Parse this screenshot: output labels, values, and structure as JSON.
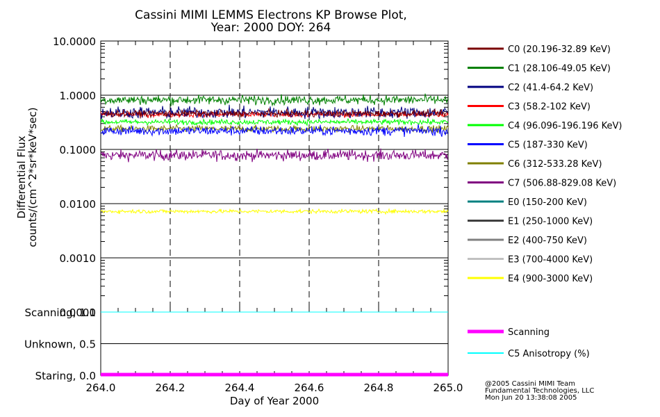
{
  "chart_data": {
    "type": "line",
    "title": "Cassini MIMI LEMMS Electrons KP Browse Plot,",
    "subtitle": "Year: 2000 DOY: 264",
    "xlabel": "Day of Year 2000",
    "ylabel_line1": "Differential Flux",
    "ylabel_line2": "counts/(cm^2*sr*keV*sec)",
    "xlim": [
      264.0,
      265.0
    ],
    "x_ticks": [
      "264.0",
      "264.2",
      "264.4",
      "264.6",
      "264.8",
      "265.0"
    ],
    "ylim_log": [
      0.0001,
      10.0
    ],
    "y_ticks": [
      "10.0000",
      "1.0000",
      "0.1000",
      "0.0100",
      "0.0010",
      "0.0001"
    ],
    "y_scale": "log",
    "grid": true,
    "series": [
      {
        "name": "C0 (20.196-32.89 KeV)",
        "color": "#7a0000",
        "mean": 0.46,
        "noise": 0.1,
        "visible": true
      },
      {
        "name": "C1 (28.106-49.05 KeV)",
        "color": "#008000",
        "mean": 0.82,
        "noise": 0.14,
        "visible": true
      },
      {
        "name": "C2 (41.4-64.2 KeV)",
        "color": "#000080",
        "mean": 0.48,
        "noise": 0.18,
        "visible": true
      },
      {
        "name": "C3 (58.2-102 KeV)",
        "color": "#ff0000",
        "mean": 0.44,
        "noise": 0.08,
        "visible": true
      },
      {
        "name": "C4 (96.096-196.196 KeV)",
        "color": "#00ff00",
        "mean": 0.32,
        "noise": 0.08,
        "visible": true
      },
      {
        "name": "C5 (187-330 KeV)",
        "color": "#0000ff",
        "mean": 0.22,
        "noise": 0.14,
        "visible": true
      },
      {
        "name": "C6 (312-533.28 KeV)",
        "color": "#808000",
        "mean": 0.24,
        "noise": 0.1,
        "visible": true
      },
      {
        "name": "C7 (506.88-829.08 KeV)",
        "color": "#800080",
        "mean": 0.078,
        "noise": 0.16,
        "visible": true
      },
      {
        "name": "E0 (150-200 KeV)",
        "color": "#008080",
        "mean": null,
        "noise": 0,
        "visible": false
      },
      {
        "name": "E1 (250-1000 KeV)",
        "color": "#404040",
        "mean": null,
        "noise": 0,
        "visible": false
      },
      {
        "name": "E2 (400-750 KeV)",
        "color": "#808080",
        "mean": null,
        "noise": 0,
        "visible": false
      },
      {
        "name": "E3 (700-4000 KeV)",
        "color": "#c0c0c0",
        "mean": null,
        "noise": 0,
        "visible": false
      },
      {
        "name": "E4 (900-3000 KeV)",
        "color": "#ffff00",
        "mean": 0.0072,
        "noise": 0.06,
        "visible": true
      }
    ],
    "lower_panel": {
      "y_ticks": [
        "Scanning, 1.0",
        "Unknown, 0.5",
        "Staring, 0.0"
      ],
      "ylim": [
        0.0,
        1.0
      ],
      "series": [
        {
          "name": "Scanning",
          "color": "#ff00ff",
          "value": 0.0
        },
        {
          "name": "C5 Anisotropy (%)",
          "color": "#00ffff",
          "value": 1.0
        }
      ]
    }
  },
  "credits": {
    "line1": "@2005 Cassini MIMI Team",
    "line2": "Fundamental Technologies, LLC",
    "line3": "Mon Jun 20 13:38:08 2005"
  }
}
